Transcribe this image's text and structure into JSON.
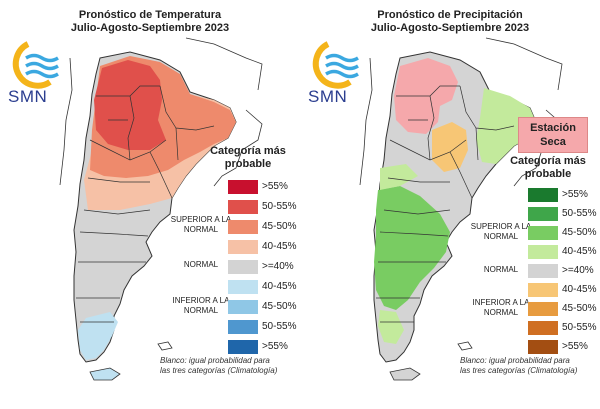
{
  "logo": {
    "text": "SMN",
    "colors": {
      "sun": "#f4b41a",
      "wave": "#3ba8e0",
      "text": "#2a3d8f"
    }
  },
  "panels": [
    {
      "id": "temp",
      "title_line1": "Pronóstico de Temperatura",
      "title_line2": "Julio-Agosto-Septiembre 2023",
      "legend_title": "Categoría más probable",
      "groups": {
        "upper": "SUPERIOR A LA NORMAL",
        "normal": "NORMAL",
        "lower": "INFERIOR A LA NORMAL"
      },
      "legend": [
        {
          "label": ">55%",
          "color": "#c8102e"
        },
        {
          "label": "50-55%",
          "color": "#e0504b"
        },
        {
          "label": "45-50%",
          "color": "#ee8a6c"
        },
        {
          "label": "40-45%",
          "color": "#f6c1a6"
        },
        {
          "label": ">=40%",
          "color": "#d3d3d3"
        },
        {
          "label": "40-45%",
          "color": "#bfe1f1"
        },
        {
          "label": "45-50%",
          "color": "#8fc7e6"
        },
        {
          "label": "50-55%",
          "color": "#4f97cf"
        },
        {
          "label": ">55%",
          "color": "#1f66aa"
        }
      ],
      "note_line1": "Blanco: igual probabilidad para",
      "note_line2": "las tres categorías (Climatología)"
    },
    {
      "id": "precip",
      "title_line1": "Pronóstico de Precipitación",
      "title_line2": "Julio-Agosto-Septiembre 2023",
      "badge": "Estación Seca",
      "legend_title": "Categoría más probable",
      "groups": {
        "upper": "SUPERIOR A LA NORMAL",
        "normal": "NORMAL",
        "lower": "INFERIOR A LA NORMAL"
      },
      "legend": [
        {
          "label": ">55%",
          "color": "#1a7a2e"
        },
        {
          "label": "50-55%",
          "color": "#3fa64a"
        },
        {
          "label": "45-50%",
          "color": "#79cc62"
        },
        {
          "label": "40-45%",
          "color": "#c3ea9c"
        },
        {
          "label": ">=40%",
          "color": "#d3d3d3"
        },
        {
          "label": "40-45%",
          "color": "#f7c675"
        },
        {
          "label": "45-50%",
          "color": "#e79b3f"
        },
        {
          "label": "50-55%",
          "color": "#cf6f22"
        },
        {
          "label": ">55%",
          "color": "#a34e12"
        }
      ],
      "note_line1": "Blanco: igual probabilidad para",
      "note_line2": "las tres categorías (Climatología)"
    }
  ]
}
